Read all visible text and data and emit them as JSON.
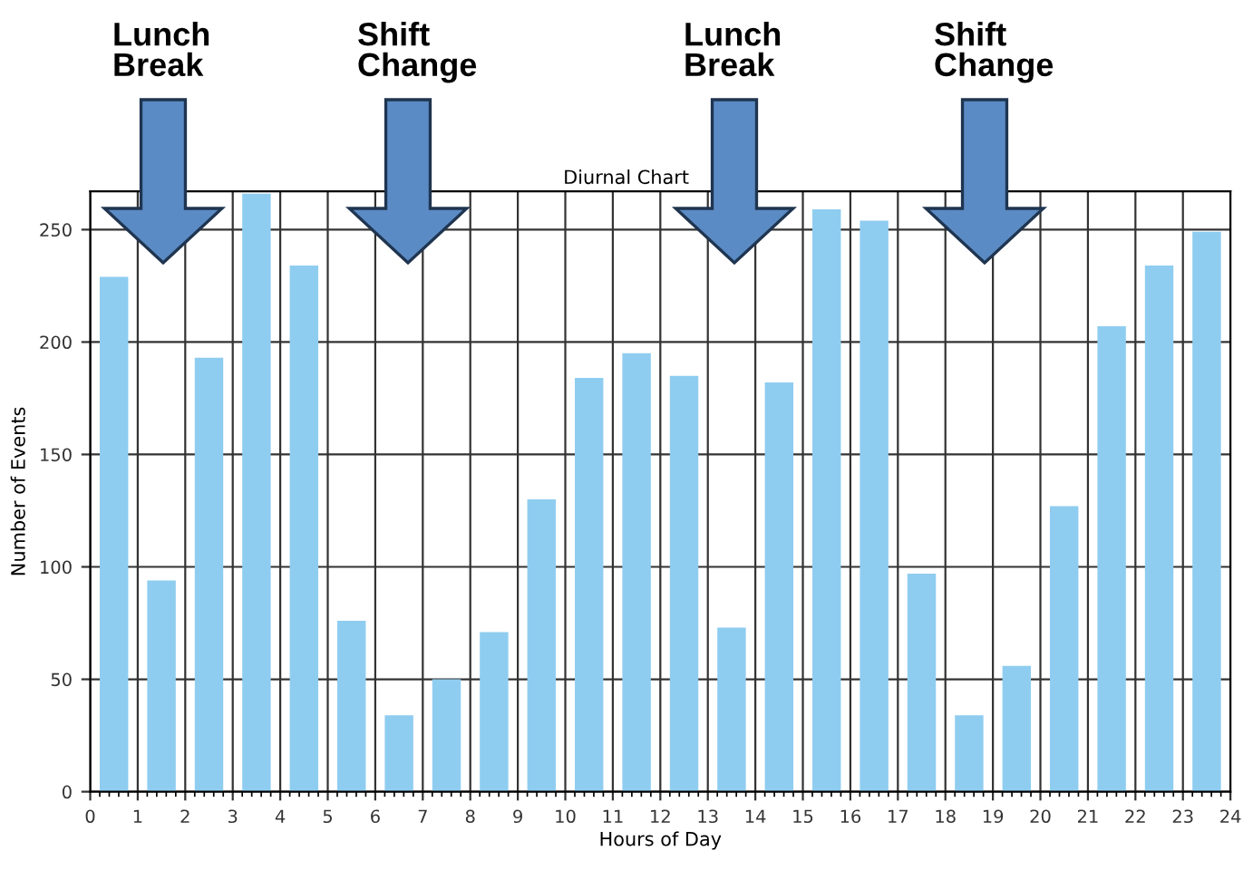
{
  "chart_data": {
    "type": "bar",
    "title": "Diurnal Chart",
    "xlabel": "Hours of Day",
    "ylabel": "Number of Events",
    "x": [
      0.5,
      1.5,
      2.5,
      3.5,
      4.5,
      5.5,
      6.5,
      7.5,
      8.5,
      9.5,
      10.5,
      11.5,
      12.5,
      13.5,
      14.5,
      15.5,
      16.5,
      17.5,
      18.5,
      19.5,
      20.5,
      21.5,
      22.5,
      23.5
    ],
    "values": [
      229,
      94,
      193,
      266,
      234,
      76,
      34,
      50,
      71,
      130,
      184,
      195,
      185,
      73,
      182,
      259,
      254,
      97,
      34,
      56,
      127,
      207,
      234,
      249
    ],
    "color": "#8fcdf0",
    "xlim": [
      0,
      24
    ],
    "xticks": [
      0,
      1,
      2,
      3,
      4,
      5,
      6,
      7,
      8,
      9,
      10,
      11,
      12,
      13,
      14,
      15,
      16,
      17,
      18,
      19,
      20,
      21,
      22,
      23,
      24
    ],
    "ylim": [
      0,
      267
    ],
    "yticks": [
      0,
      50,
      100,
      150,
      200,
      250
    ],
    "grid": true,
    "annotations": [
      "Lunch\nBreak",
      "Shift\nChange",
      "Lunch\nBreak",
      "Shift\nChange"
    ]
  }
}
